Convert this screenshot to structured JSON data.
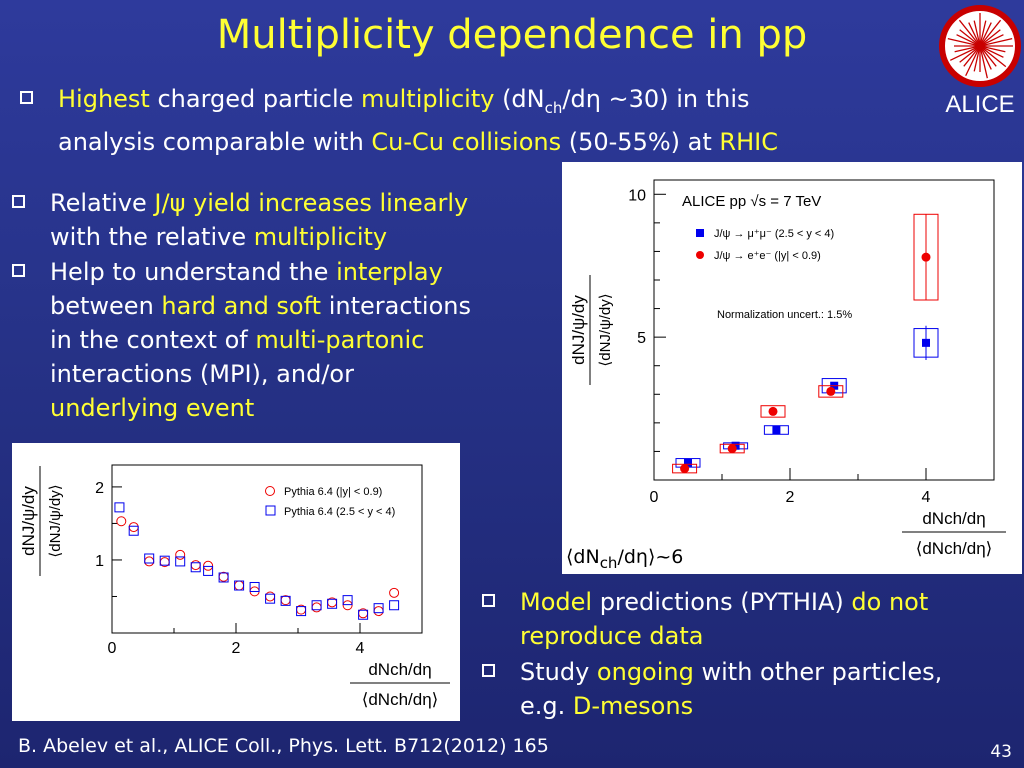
{
  "title": "Multiplicity dependence in pp",
  "bullet1": {
    "line1": [
      {
        "t": "Highest",
        "y": true
      },
      {
        "t": " charged particle ",
        "y": false
      },
      {
        "t": "multiplicity",
        "y": true
      },
      {
        "t": " (dN",
        "y": false
      }
    ],
    "sub": "ch",
    "line1b": "/dη ~30) in this",
    "line2": [
      {
        "t": "analysis comparable with ",
        "y": false
      },
      {
        "t": "Cu-Cu collisions",
        "y": true
      },
      {
        "t": " (50-55%) at ",
        "y": false
      },
      {
        "t": "RHIC",
        "y": true
      }
    ]
  },
  "bullet2": {
    "a": "Relative ",
    "b": "J/ψ yield increases linearly",
    "c": "with the relative ",
    "d": "multiplicity"
  },
  "bullet3": {
    "a": "Help to understand the ",
    "b": "interplay",
    "c": "between ",
    "d": "hard and soft",
    "e": " interactions",
    "f": "in the context of ",
    "g": "multi-partonic",
    "h": "interactions (MPI), and/or",
    "i": "underlying event"
  },
  "bullet4": {
    "a": "Model",
    "b": " predictions (PYTHIA) ",
    "c": "do not",
    "d": "reproduce data"
  },
  "bullet5": {
    "a": "Study ",
    "b": "ongoing",
    "c": " with other particles,",
    "d": "e.g. ",
    "e": "D-mesons"
  },
  "logo_text": "ALICE",
  "citation": "B. Abelev et al., ALICE Coll., Phys. Lett. B712(2012) 165",
  "page_number": "43",
  "dnch_note": {
    "a": "⟨dN",
    "sub": "ch",
    "b": "/dη⟩~6"
  },
  "colors": {
    "accent": "#ffff33",
    "blue": "#0000ee",
    "red": "#ee0000"
  },
  "chart_data": [
    {
      "type": "scatter",
      "title": "ALICE pp √s = 7 TeV",
      "annotation": "Normalization uncert.: 1.5%",
      "xlabel_num": "dN",
      "xlabel_sub": "ch",
      "xlabel_rest": "/dη",
      "ylabel": "dNJ/ψ/dy / ⟨dNJ/ψ/dy⟩",
      "xlim": [
        0,
        5
      ],
      "ylim": [
        0,
        10.5
      ],
      "xticks": [
        "0",
        "2",
        "4"
      ],
      "yticks": [
        "5",
        "10"
      ],
      "series": [
        {
          "name": "J/ψ → μ⁺μ⁻ (2.5 < y < 4)",
          "color": "#0000ee",
          "marker": "square",
          "x": [
            0.5,
            1.2,
            1.8,
            2.65,
            4.0
          ],
          "y": [
            0.6,
            1.2,
            1.75,
            3.3,
            4.8
          ]
        },
        {
          "name": "J/ψ → e⁺e⁻ (|y| < 0.9)",
          "color": "#ee0000",
          "marker": "circle",
          "x": [
            0.45,
            1.15,
            1.75,
            2.6,
            4.0
          ],
          "y": [
            0.4,
            1.1,
            2.4,
            3.1,
            7.8
          ]
        }
      ]
    },
    {
      "type": "scatter",
      "xlabel_num": "dN",
      "xlabel_sub": "ch",
      "xlabel_rest": "/dη",
      "xlim": [
        0,
        5
      ],
      "ylim": [
        0,
        2.3
      ],
      "xticks": [
        "0",
        "2",
        "4"
      ],
      "yticks": [
        "1",
        "2"
      ],
      "series": [
        {
          "name": "Pythia 6.4 (|y| < 0.9)",
          "color": "#ee0000",
          "marker": "open-circle",
          "x": [
            0.15,
            0.35,
            0.6,
            0.85,
            1.1,
            1.35,
            1.55,
            1.8,
            2.05,
            2.3,
            2.55,
            2.8,
            3.05,
            3.3,
            3.55,
            3.8,
            4.05,
            4.3,
            4.55
          ],
          "y": [
            1.53,
            1.45,
            0.98,
            0.97,
            1.07,
            0.93,
            0.92,
            0.77,
            0.65,
            0.57,
            0.5,
            0.45,
            0.32,
            0.35,
            0.42,
            0.38,
            0.27,
            0.3,
            0.55
          ]
        },
        {
          "name": "Pythia 6.4 (2.5 < y < 4)",
          "color": "#0000ee",
          "marker": "open-square",
          "x": [
            0.12,
            0.35,
            0.6,
            0.85,
            1.1,
            1.35,
            1.55,
            1.8,
            2.05,
            2.3,
            2.55,
            2.8,
            3.05,
            3.3,
            3.55,
            3.8,
            4.05,
            4.3,
            4.55
          ],
          "y": [
            1.72,
            1.4,
            1.02,
            0.99,
            0.98,
            0.9,
            0.85,
            0.76,
            0.65,
            0.63,
            0.47,
            0.44,
            0.3,
            0.38,
            0.4,
            0.45,
            0.25,
            0.34,
            0.38
          ]
        }
      ]
    }
  ]
}
